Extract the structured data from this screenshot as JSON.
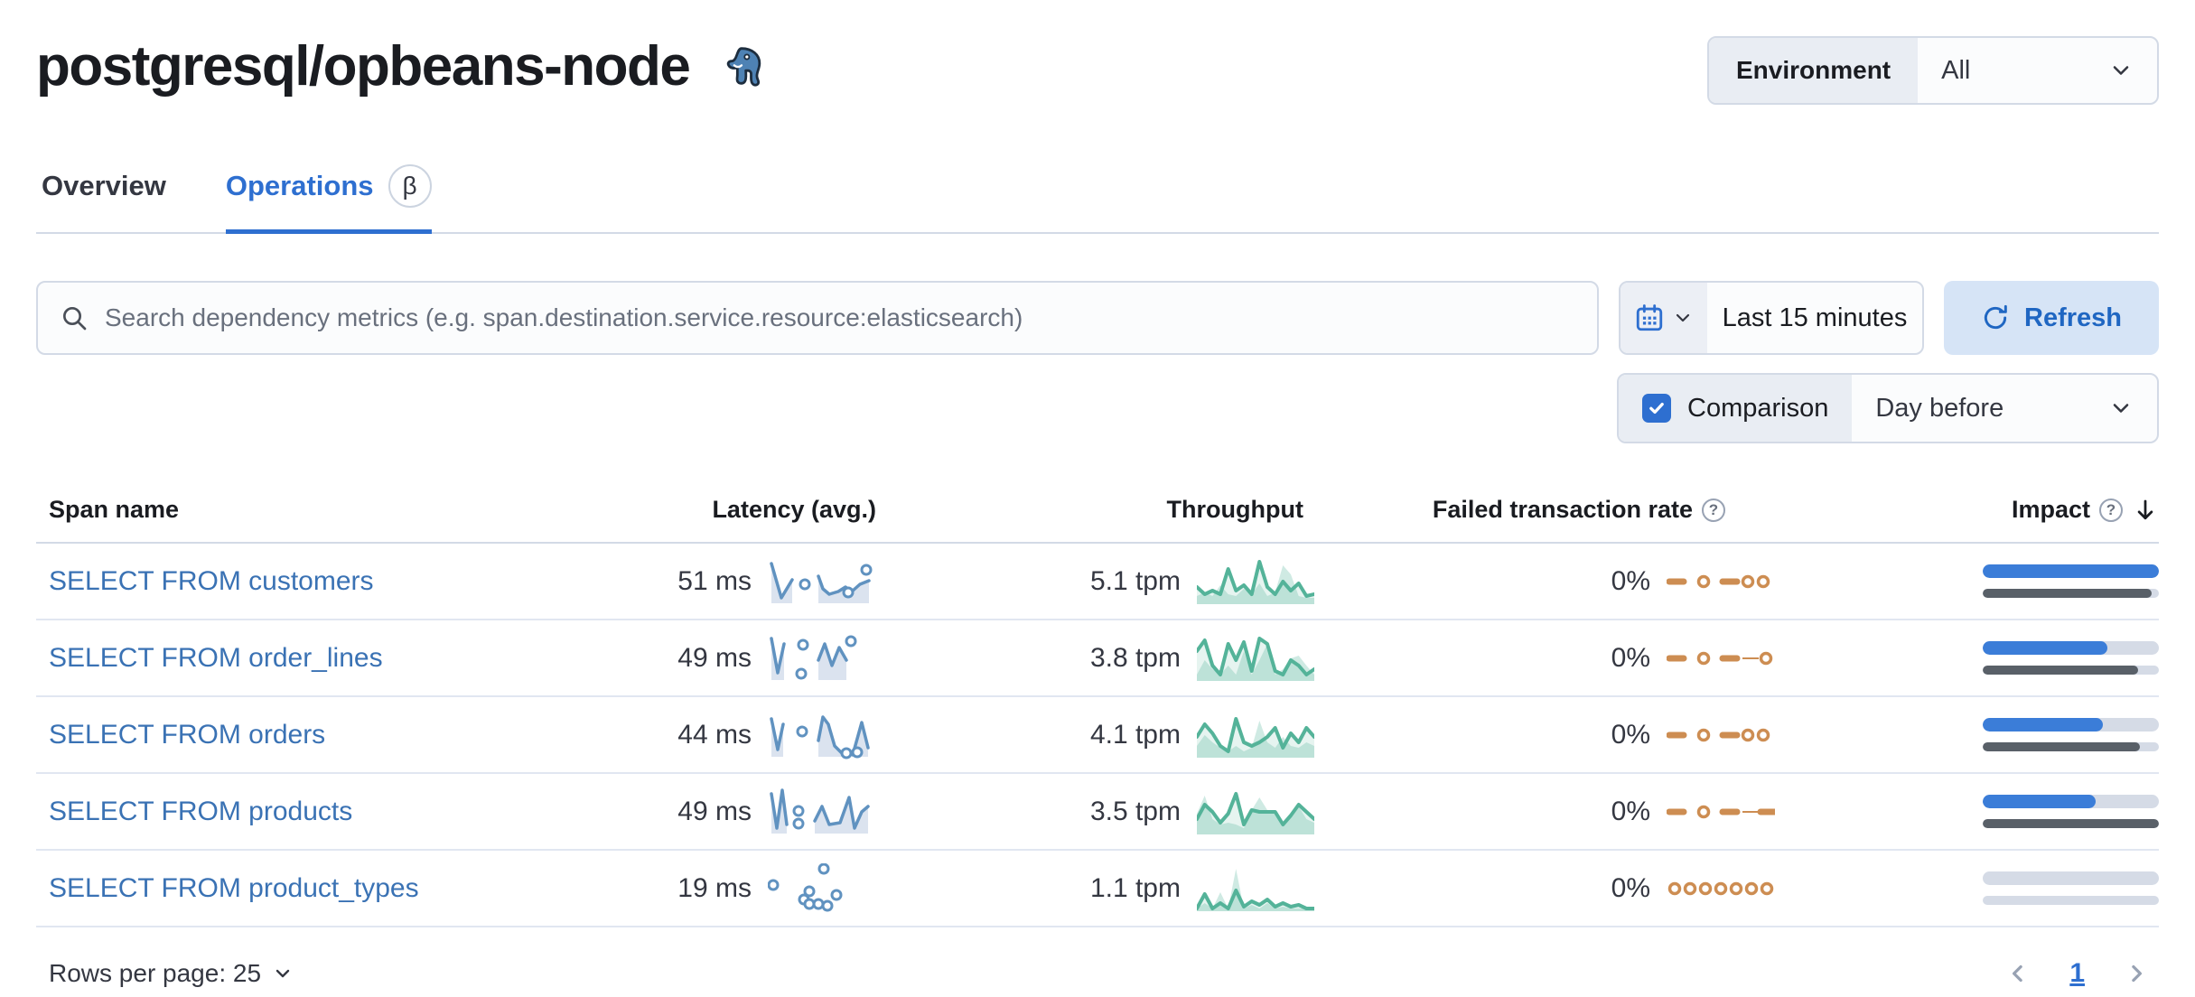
{
  "header": {
    "title": "postgresql/opbeans-node",
    "logo": "postgresql-elephant-icon",
    "environment_label": "Environment",
    "environment_value": "All"
  },
  "tabs": [
    {
      "label": "Overview",
      "active": false
    },
    {
      "label": "Operations",
      "active": true,
      "badge": "β"
    }
  ],
  "toolbar": {
    "search_placeholder": "Search dependency metrics (e.g. span.destination.service.resource:elasticsearch)",
    "time_range": "Last 15 minutes",
    "refresh_label": "Refresh",
    "comparison_label": "Comparison",
    "comparison_checked": true,
    "comparison_value": "Day before"
  },
  "table": {
    "columns": [
      "Span name",
      "Latency (avg.)",
      "Throughput",
      "Failed transaction rate",
      "Impact"
    ],
    "sort": {
      "column": "Impact",
      "direction": "desc"
    },
    "rows": [
      {
        "name": "SELECT FROM customers",
        "latency": "51 ms",
        "throughput": "5.1 tpm",
        "failed_rate": "0%",
        "impact": {
          "current": 100,
          "previous": 96
        },
        "latency_spark": {
          "segments": [
            [
              [
                4,
                8
              ],
              [
                15,
                46
              ],
              [
                27,
                26
              ]
            ],
            [
              [
                56,
                22
              ],
              [
                61,
                36
              ],
              [
                68,
                42
              ],
              [
                78,
                39
              ],
              [
                86,
                34
              ],
              [
                93,
                39
              ],
              [
                102,
                31
              ],
              [
                112,
                27
              ]
            ]
          ],
          "dots": [
            [
              41,
              31
            ],
            [
              89,
              40
            ],
            [
              109,
              15
            ]
          ]
        },
        "throughput_spark": {
          "line": [
            34,
            42,
            38,
            42,
            14,
            38,
            32,
            42,
            6,
            34,
            42,
            28,
            38,
            30,
            44,
            42
          ],
          "area": [
            44,
            40,
            44,
            32,
            42,
            44,
            36,
            42,
            30,
            44,
            40,
            10,
            20,
            44,
            46,
            46
          ]
        },
        "failed_spark": [
          "dash",
          "gap",
          "dot",
          "gap",
          "dash",
          "dot",
          "dot"
        ]
      },
      {
        "name": "SELECT FROM order_lines",
        "latency": "49 ms",
        "throughput": "3.8 tpm",
        "failed_rate": "0%",
        "impact": {
          "current": 71,
          "previous": 88
        },
        "latency_spark": {
          "segments": [
            [
              [
                4,
                6
              ],
              [
                11,
                44
              ],
              [
                18,
                12
              ]
            ],
            [
              [
                56,
                30
              ],
              [
                63,
                12
              ],
              [
                71,
                36
              ],
              [
                79,
                16
              ],
              [
                87,
                30
              ]
            ]
          ],
          "dots": [
            [
              39,
              13
            ],
            [
              37,
              45
            ],
            [
              92,
              9
            ]
          ]
        },
        "throughput_spark": {
          "line": [
            20,
            8,
            36,
            46,
            12,
            30,
            10,
            42,
            6,
            12,
            42,
            46,
            30,
            36,
            46,
            40
          ],
          "area": [
            46,
            30,
            40,
            46,
            36,
            46,
            20,
            46,
            30,
            12,
            46,
            40,
            28,
            25,
            36,
            46
          ]
        },
        "failed_spark": [
          "dash",
          "gap",
          "dot",
          "gap",
          "dash",
          "line",
          "dot"
        ]
      },
      {
        "name": "SELECT FROM orders",
        "latency": "44 ms",
        "throughput": "4.1 tpm",
        "failed_rate": "0%",
        "impact": {
          "current": 68,
          "previous": 89
        },
        "latency_spark": {
          "segments": [
            [
              [
                4,
                10
              ],
              [
                11,
                44
              ],
              [
                17,
                16
              ]
            ],
            [
              [
                56,
                34
              ],
              [
                61,
                8
              ],
              [
                67,
                16
              ],
              [
                74,
                40
              ],
              [
                82,
                48
              ]
            ],
            [
              [
                94,
                50
              ],
              [
                104,
                14
              ],
              [
                111,
                42
              ]
            ]
          ],
          "dots": [
            [
              38,
              24
            ],
            [
              87,
              48
            ],
            [
              99,
              47
            ]
          ]
        },
        "throughput_spark": {
          "line": [
            30,
            16,
            26,
            40,
            46,
            10,
            36,
            40,
            36,
            30,
            20,
            42,
            26,
            36,
            20,
            30
          ],
          "area": [
            40,
            28,
            36,
            42,
            46,
            40,
            46,
            42,
            12,
            36,
            42,
            30,
            40,
            42,
            36,
            40
          ]
        },
        "failed_spark": [
          "dash",
          "gap",
          "dot",
          "gap",
          "dash",
          "dot",
          "dot"
        ]
      },
      {
        "name": "SELECT FROM products",
        "latency": "49 ms",
        "throughput": "3.5 tpm",
        "failed_rate": "0%",
        "impact": {
          "current": 64,
          "previous": 100
        },
        "latency_spark": {
          "segments": [
            [
              [
                4,
                8
              ],
              [
                10,
                46
              ],
              [
                16,
                4
              ],
              [
                21,
                42
              ]
            ],
            [
              [
                52,
                38
              ],
              [
                60,
                22
              ],
              [
                68,
                42
              ],
              [
                80,
                40
              ],
              [
                90,
                12
              ],
              [
                96,
                46
              ],
              [
                104,
                28
              ],
              [
                111,
                22
              ]
            ]
          ],
          "dots": [
            [
              34,
              27
            ],
            [
              34,
              41
            ]
          ]
        },
        "throughput_spark": {
          "line": [
            36,
            20,
            28,
            40,
            30,
            8,
            42,
            26,
            28,
            28,
            28,
            42,
            32,
            20,
            28,
            36
          ],
          "area": [
            30,
            10,
            36,
            42,
            40,
            42,
            46,
            26,
            12,
            26,
            30,
            42,
            30,
            22,
            36,
            40
          ]
        },
        "failed_spark": [
          "dash",
          "gap",
          "dot",
          "gap",
          "dash",
          "line",
          "dash"
        ]
      },
      {
        "name": "SELECT FROM product_types",
        "latency": "19 ms",
        "throughput": "1.1 tpm",
        "failed_rate": "0%",
        "impact": {
          "current": 0,
          "previous": 0
        },
        "latency_spark": {
          "segments": [],
          "dots": [
            [
              6,
              24
            ],
            [
              62,
              6
            ],
            [
              40,
              40
            ],
            [
              46,
              31
            ],
            [
              46,
              45
            ],
            [
              56,
              45
            ],
            [
              66,
              47
            ],
            [
              76,
              35
            ]
          ]
        },
        "throughput_spark": {
          "line": [
            50,
            34,
            50,
            44,
            50,
            30,
            48,
            42,
            46,
            40,
            48,
            44,
            48,
            46,
            50,
            50
          ],
          "area": [
            50,
            44,
            50,
            32,
            50,
            6,
            50,
            46,
            50,
            44,
            50,
            48,
            50,
            50,
            50,
            50
          ]
        },
        "failed_spark": [
          "dot",
          "dot",
          "dot",
          "dot",
          "dot",
          "dot",
          "dot"
        ]
      }
    ]
  },
  "footer": {
    "rows_per_page_label": "Rows per page: 25",
    "page": "1"
  },
  "colors": {
    "primary": "#2e6fd0",
    "link": "#3a72b4",
    "latency_line": "#6092c0",
    "latency_area": "#dbe3ef",
    "throughput_green": "#54b399",
    "failed_orange": "#cd8d52",
    "impact_current": "#3b7dd8",
    "impact_previous": "#596068",
    "bar_track": "#d5dbe6"
  }
}
